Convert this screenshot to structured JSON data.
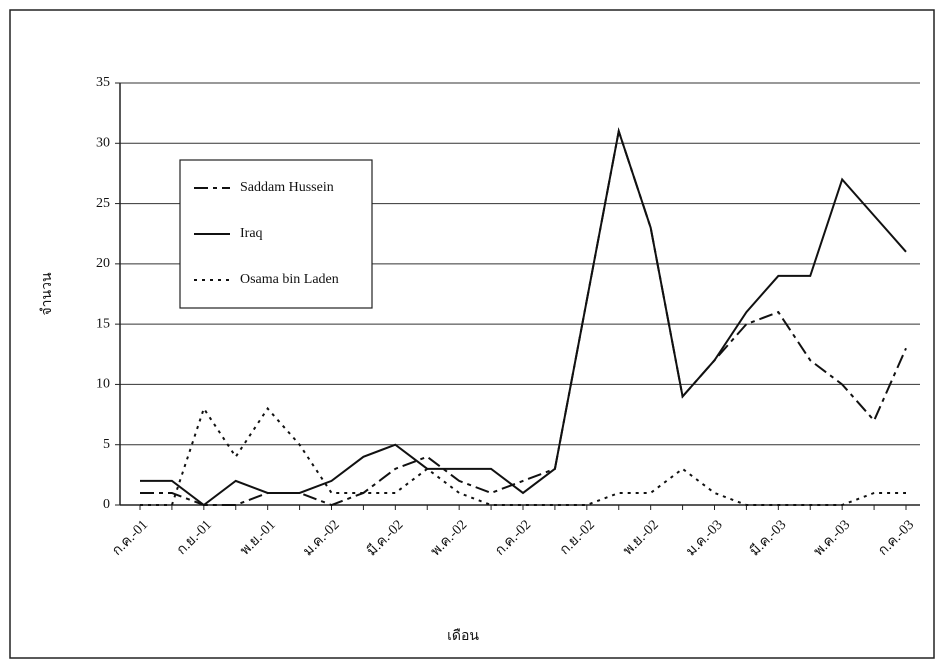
{
  "chart_data": {
    "type": "line",
    "x_label": "เดือน",
    "y_label": "จำนวน",
    "categories": [
      "ก.ค.-01",
      null,
      "ก.ย.-01",
      null,
      "พ.ย.-01",
      null,
      "ม.ค.-02",
      null,
      "มี.ค.-02",
      null,
      "พ.ค.-02",
      null,
      "ก.ค.-02",
      null,
      "ก.ย.-02",
      null,
      "พ.ย.-02",
      null,
      "ม.ค.-03",
      null,
      "มี.ค.-03",
      null,
      "พ.ค.-03",
      null,
      "ก.ค.-03"
    ],
    "series": [
      {
        "name": "Saddam Hussein",
        "color": "#111111",
        "dash": "long-dash",
        "values": [
          1,
          1,
          0,
          0,
          1,
          1,
          0,
          1,
          3,
          4,
          2,
          1,
          2,
          3,
          17,
          31,
          23,
          9,
          12,
          15,
          16,
          12,
          10,
          7,
          13
        ]
      },
      {
        "name": "Iraq",
        "color": "#111111",
        "dash": "solid",
        "values": [
          2,
          2,
          0,
          2,
          1,
          1,
          2,
          4,
          5,
          3,
          3,
          3,
          1,
          3,
          17,
          31,
          23,
          9,
          12,
          16,
          19,
          19,
          27,
          24,
          21
        ]
      },
      {
        "name": "Osama bin Laden",
        "color": "#111111",
        "dash": "dotted",
        "values": [
          0,
          0,
          8,
          4,
          8,
          5,
          1,
          1,
          1,
          3,
          1,
          0,
          0,
          0,
          0,
          1,
          1,
          3,
          1,
          0,
          0,
          0,
          0,
          1,
          1
        ]
      }
    ],
    "ylim": [
      0,
      35
    ],
    "yticks": [
      0,
      5,
      10,
      15,
      20,
      25,
      30,
      35
    ],
    "grid": true,
    "legend": "top-left"
  }
}
